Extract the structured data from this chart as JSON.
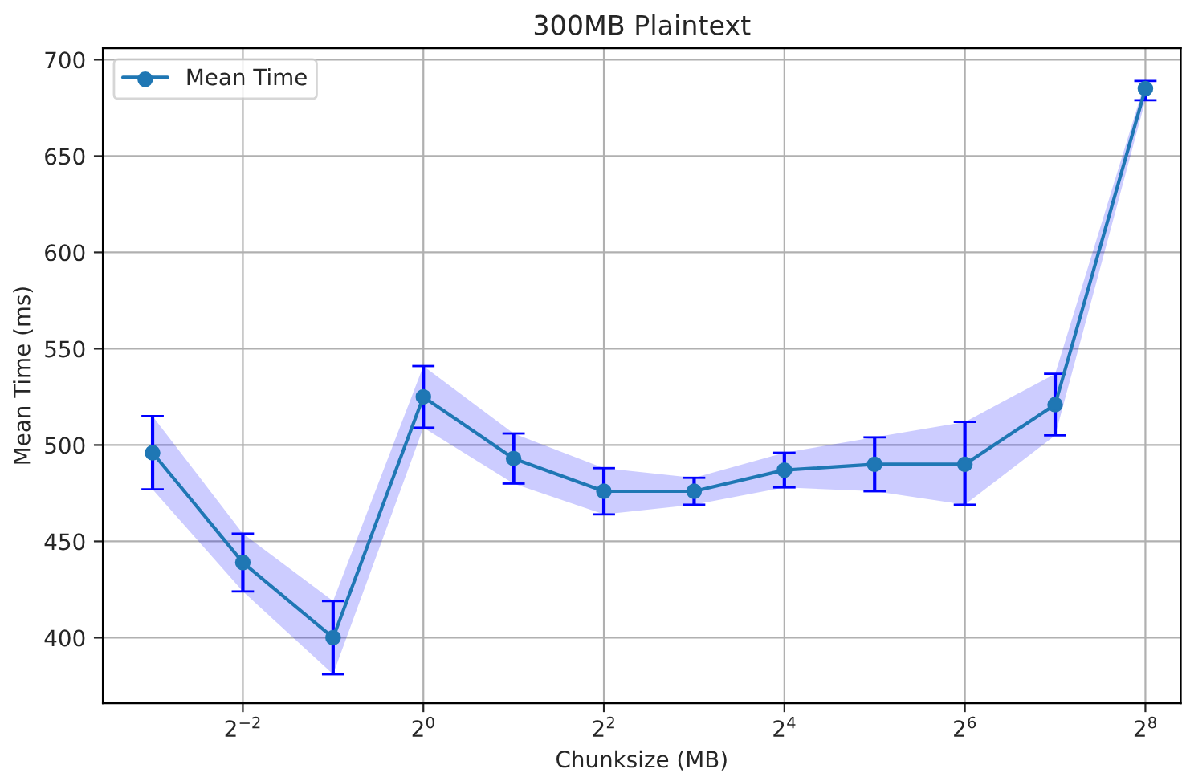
{
  "chart_data": {
    "type": "line",
    "title": "300MB Plaintext",
    "xlabel": "Chunksize (MB)",
    "ylabel": "Mean Time (ms)",
    "log": "x",
    "xlim": [
      0.0853,
      336
    ],
    "ylim": [
      366,
      706
    ],
    "xticks": [
      {
        "value": 0.25,
        "label": "2$^{−2}$"
      },
      {
        "value": 1,
        "label": "2$^{0}$"
      },
      {
        "value": 4,
        "label": "2$^{2}$"
      },
      {
        "value": 16,
        "label": "2$^{4}$"
      },
      {
        "value": 64,
        "label": "2$^{6}$"
      },
      {
        "value": 256,
        "label": "2$^{8}$"
      }
    ],
    "yticks": [
      400,
      450,
      500,
      550,
      600,
      650,
      700
    ],
    "x": [
      0.125,
      0.25,
      0.5,
      1,
      2,
      4,
      8,
      16,
      32,
      64,
      128,
      256
    ],
    "series": [
      {
        "name": "Mean Time",
        "color": "#1f77b4",
        "values": [
          496,
          439,
          400,
          525,
          493,
          476,
          476,
          487,
          490,
          490,
          521,
          685
        ],
        "errors": [
          [
            477,
            515
          ],
          [
            424,
            454
          ],
          [
            381,
            419
          ],
          [
            509,
            541
          ],
          [
            480,
            506
          ],
          [
            464,
            488
          ],
          [
            469,
            483
          ],
          [
            478,
            496
          ],
          [
            476,
            504
          ],
          [
            469,
            512
          ],
          [
            505,
            537
          ],
          [
            679,
            689
          ]
        ],
        "lower": [
          477,
          424,
          381,
          509,
          480,
          464,
          469,
          478,
          476,
          469,
          505,
          679
        ],
        "upper": [
          515,
          454,
          419,
          541,
          506,
          488,
          483,
          496,
          504,
          512,
          537,
          689
        ]
      }
    ],
    "marker": "circle",
    "line_style": "solid",
    "grid": true,
    "legend": "top left"
  }
}
